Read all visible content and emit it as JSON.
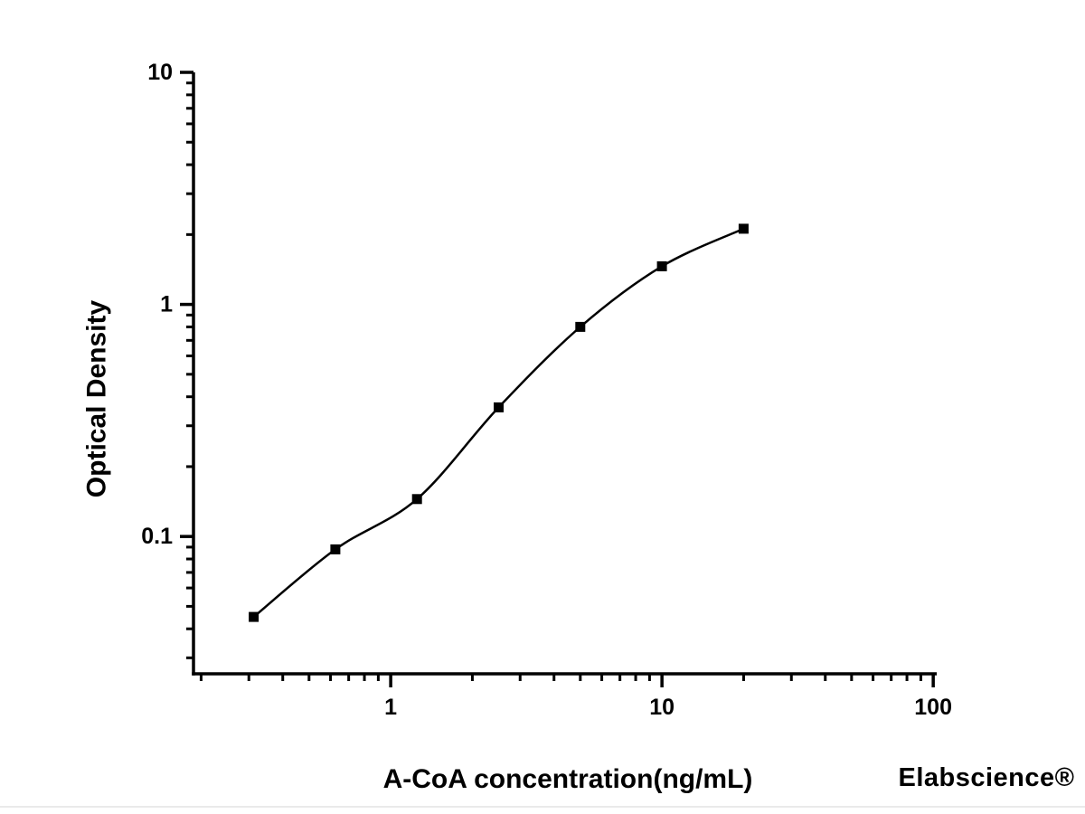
{
  "figure": {
    "watermark": "Elabscience®",
    "background_color": "#ffffff",
    "axis_color": "#000000",
    "text_color": "#000000",
    "watermark_color": "#f2f2f2",
    "separator_color": "#eaeaea"
  },
  "chart_data": {
    "type": "scatter",
    "title": "",
    "xlabel": "A-CoA concentration(ng/mL)",
    "ylabel": "Optical Density",
    "x_scale": "log",
    "y_scale": "log",
    "x": [
      0.3125,
      0.625,
      1.25,
      2.5,
      5,
      10,
      20
    ],
    "y": [
      0.045,
      0.088,
      0.145,
      0.36,
      0.8,
      1.46,
      2.12
    ],
    "x_ticks_major": [
      1,
      10,
      100
    ],
    "x_tick_labels": [
      "1",
      "10",
      "100"
    ],
    "y_ticks_major": [
      0.1,
      1,
      10
    ],
    "y_tick_labels": [
      "0.1",
      "1",
      "10"
    ],
    "x_range": [
      0.1875,
      103
    ],
    "y_range": [
      0.0256,
      10
    ],
    "grid": false,
    "legend": "none",
    "marker": "filled-square",
    "marker_size": 11,
    "marker_color": "#000000",
    "line_color": "#000000",
    "fit_curve": true
  }
}
